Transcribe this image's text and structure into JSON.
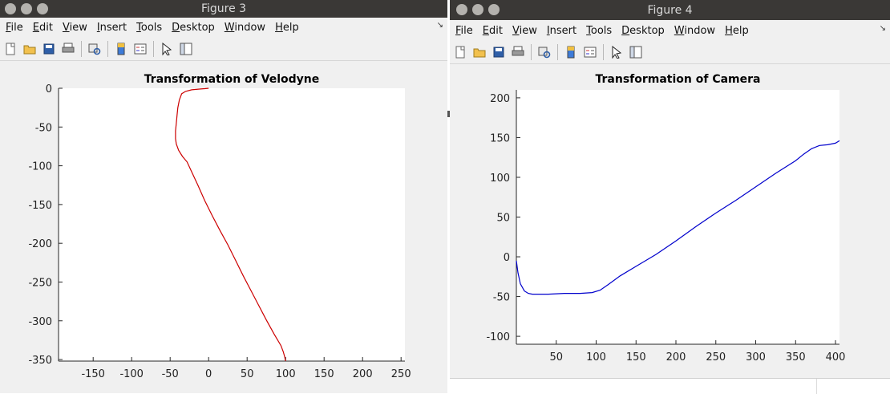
{
  "menu_items": [
    {
      "key": "file",
      "accel": "F",
      "rest": "ile"
    },
    {
      "key": "edit",
      "accel": "E",
      "rest": "dit"
    },
    {
      "key": "view",
      "accel": "V",
      "rest": "iew"
    },
    {
      "key": "insert",
      "accel": "I",
      "rest": "nsert"
    },
    {
      "key": "tools",
      "accel": "T",
      "rest": "ools"
    },
    {
      "key": "desktop",
      "accel": "D",
      "rest": "esktop"
    },
    {
      "key": "window",
      "accel": "W",
      "rest": "indow"
    },
    {
      "key": "help",
      "accel": "H",
      "rest": "elp"
    }
  ],
  "toolbar_icons": [
    "new-figure-icon",
    "open-file-icon",
    "save-icon",
    "print-icon",
    "|",
    "link-plot-icon",
    "|",
    "colorbar-icon",
    "legend-icon",
    "|",
    "edit-plot-icon",
    "property-editor-icon"
  ],
  "figures": [
    {
      "id": "fig3",
      "window_title": "Figure 3",
      "chart_data": {
        "type": "line",
        "title": "Transformation of Velodyne",
        "xlabel": "",
        "ylabel": "",
        "xlim": [
          -195,
          255
        ],
        "ylim": [
          -352,
          0
        ],
        "xticks": [
          -150,
          -100,
          -50,
          0,
          50,
          100,
          150,
          200,
          250
        ],
        "yticks": [
          0,
          -50,
          -100,
          -150,
          -200,
          -250,
          -300,
          -350
        ],
        "grid": false,
        "series": [
          {
            "color": "#cc0000",
            "x": [
              0,
              -5,
              -12,
              -22,
              -30,
              -35,
              -38,
              -40,
              -41,
              -42,
              -43,
              -43,
              -42,
              -39,
              -34,
              -28,
              -22,
              -14,
              -5,
              5,
              15,
              25,
              35,
              45,
              55,
              65,
              75,
              85,
              94,
              97,
              99,
              100
            ],
            "y": [
              0,
              -0.5,
              -1,
              -2,
              -4,
              -7,
              -15,
              -25,
              -35,
              -45,
              -55,
              -65,
              -72,
              -80,
              -88,
              -95,
              -108,
              -125,
              -145,
              -165,
              -184,
              -202,
              -222,
              -242,
              -261,
              -280,
              -299,
              -317,
              -332,
              -340,
              -347,
              -352
            ]
          }
        ]
      }
    },
    {
      "id": "fig4",
      "window_title": "Figure 4",
      "chart_data": {
        "type": "line",
        "title": "Transformation of Camera",
        "xlabel": "",
        "ylabel": "",
        "xlim": [
          0,
          405
        ],
        "ylim": [
          -110,
          210
        ],
        "xticks": [
          50,
          100,
          150,
          200,
          250,
          300,
          350,
          400
        ],
        "yticks": [
          200,
          150,
          100,
          50,
          0,
          -50,
          -100
        ],
        "grid": false,
        "series": [
          {
            "color": "#0000cc",
            "x": [
              0,
              2,
              5,
              10,
              15,
              20,
              30,
              40,
              60,
              80,
              95,
              105,
              115,
              130,
              150,
              175,
              200,
              225,
              250,
              275,
              300,
              325,
              350,
              360,
              370,
              380,
              390,
              400,
              405
            ],
            "y": [
              -5,
              -20,
              -34,
              -43,
              -46,
              -47,
              -47,
              -47,
              -46,
              -46,
              -45,
              -42,
              -35,
              -24,
              -12,
              3,
              20,
              38,
              55,
              71,
              88,
              105,
              121,
              129,
              136,
              140,
              141,
              143,
              146
            ]
          }
        ]
      }
    }
  ]
}
